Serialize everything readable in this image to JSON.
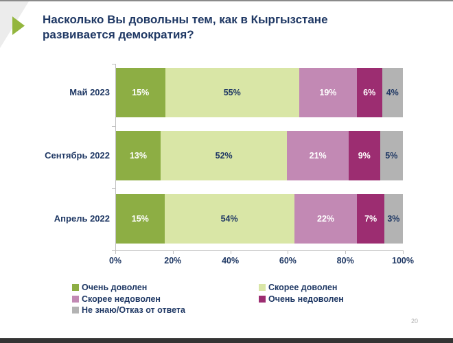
{
  "slide": {
    "title_line1": "Насколько Вы довольны тем, как в Кыргызстане",
    "title_line2": "развивается демократия?",
    "page_number": "20",
    "accent_colors": {
      "title_text": "#1f3864",
      "arrow_green": "#93b63e",
      "axis_gray": "#bfbfbf",
      "top_strip": "#8a8a8a",
      "bottom_bar": "#343434"
    }
  },
  "chart_data": {
    "type": "bar",
    "subtype": "horizontal-stacked-100",
    "title": "Насколько Вы довольны тем, как в Кыргызстане развивается демократия?",
    "categories": [
      "Май 2023",
      "Сентябрь 2022",
      "Апрель 2022"
    ],
    "series": [
      {
        "name": "Очень доволен",
        "color": "#8dae44",
        "label_color": "#ffffff",
        "values": [
          15,
          13,
          15
        ]
      },
      {
        "name": "Скорее доволен",
        "color": "#d9e6a6",
        "label_color": "#1f3864",
        "values": [
          55,
          52,
          54
        ]
      },
      {
        "name": "Скорее недоволен",
        "color": "#c289b4",
        "label_color": "#ffffff",
        "values": [
          19,
          21,
          22
        ]
      },
      {
        "name": "Очень недоволен",
        "color": "#9c2d71",
        "label_color": "#ffffff",
        "values": [
          6,
          9,
          7
        ]
      },
      {
        "name": "Не знаю/Отказ от ответа",
        "color": "#b3b3b3",
        "label_color": "#1f3864",
        "values": [
          4,
          5,
          3
        ]
      }
    ],
    "value_suffix": "%",
    "x_ticks": [
      "0%",
      "20%",
      "40%",
      "60%",
      "80%",
      "100%"
    ],
    "xlim": [
      0,
      100
    ],
    "grid": false,
    "legend_position": "bottom",
    "legend_columns": [
      [
        "Очень доволен",
        "Скорее недоволен",
        "Не знаю/Отказ от ответа"
      ],
      [
        "Скорее доволен",
        "Очень недоволен"
      ]
    ]
  }
}
